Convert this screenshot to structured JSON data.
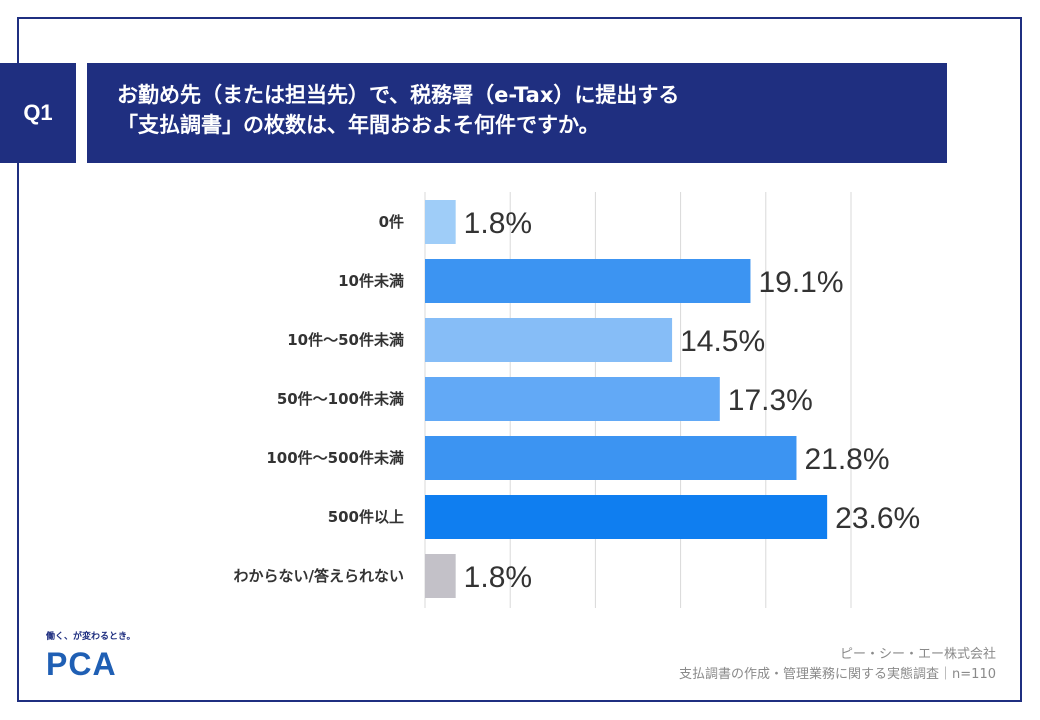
{
  "question": {
    "badge": "Q1",
    "line1": "お勤め先（または担当先）で、税務署（e-Tax）に提出する",
    "line2": "「支払調書」の枚数は、年間おおよそ何件ですか。"
  },
  "chart_data": {
    "type": "bar",
    "orientation": "horizontal",
    "categories": [
      "0件",
      "10件未満",
      "10件～50件未満",
      "50件～100件未満",
      "100件～500件未満",
      "500件以上",
      "わからない/答えられない"
    ],
    "values": [
      1.8,
      19.1,
      14.5,
      17.3,
      21.8,
      23.6,
      1.8
    ],
    "labels": [
      "1.8%",
      "19.1%",
      "14.5%",
      "17.3%",
      "21.8%",
      "23.6%",
      "1.8%"
    ],
    "colors": [
      "#9fcdf8",
      "#3c94f2",
      "#86bdf7",
      "#62a9f6",
      "#3c94f2",
      "#0f7ef0",
      "#c3c1c8"
    ],
    "xlim": [
      0,
      25
    ],
    "grid": true
  },
  "brand": {
    "tagline": "働く、が変わるとき。",
    "logo_text": "PCA"
  },
  "footer": {
    "company": "ピー・シー・エー株式会社",
    "survey": "支払調書の作成・管理業務に関する実態調査｜n=110"
  }
}
